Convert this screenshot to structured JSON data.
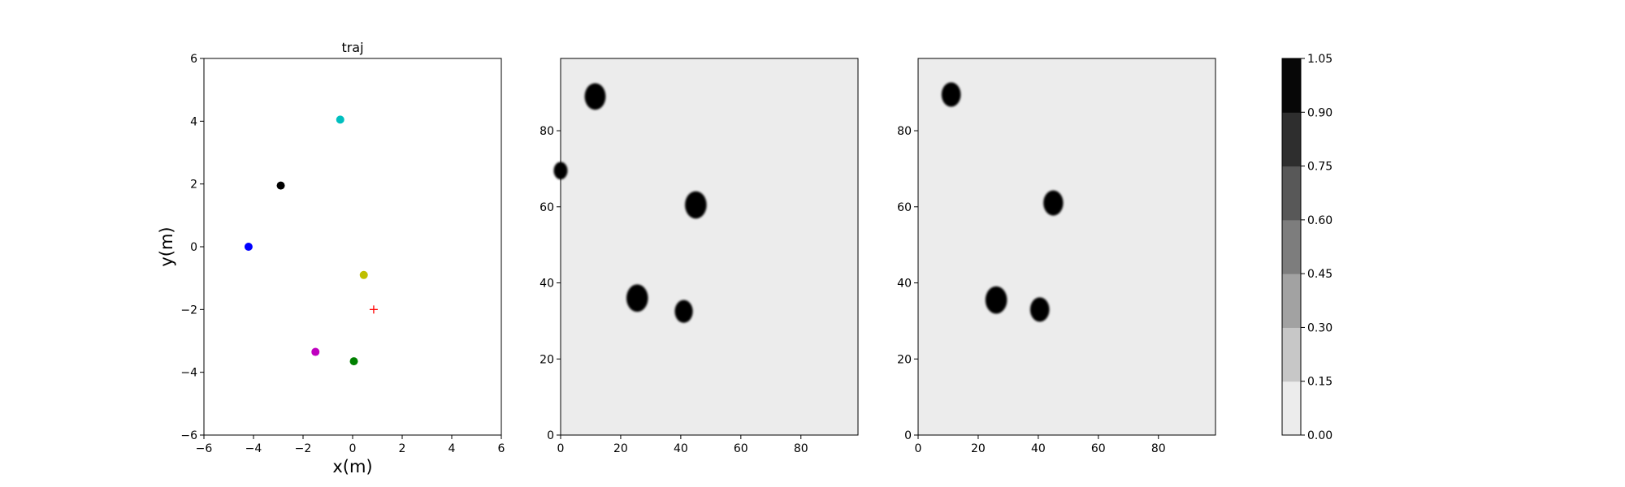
{
  "chart_data": [
    {
      "type": "scatter",
      "title": "traj",
      "xlabel": "x(m)",
      "ylabel": "y(m)",
      "xlim": [
        -6,
        6
      ],
      "ylim": [
        -6,
        6
      ],
      "xticks": [
        -6,
        -4,
        -2,
        0,
        2,
        4,
        6
      ],
      "yticks": [
        -6,
        -4,
        -2,
        0,
        2,
        4,
        6
      ],
      "grid": false,
      "points": [
        {
          "x": -0.5,
          "y": 4.05,
          "color": "#00bfbf",
          "marker": "circle"
        },
        {
          "x": -2.9,
          "y": 1.95,
          "color": "#000000",
          "marker": "circle"
        },
        {
          "x": -4.2,
          "y": 0.0,
          "color": "#0000ff",
          "marker": "circle"
        },
        {
          "x": 0.45,
          "y": -0.9,
          "color": "#bfbf00",
          "marker": "circle"
        },
        {
          "x": 0.85,
          "y": -2.0,
          "color": "#ff0000",
          "marker": "plus"
        },
        {
          "x": -1.5,
          "y": -3.35,
          "color": "#bf00bf",
          "marker": "circle"
        },
        {
          "x": 0.05,
          "y": -3.65,
          "color": "#008000",
          "marker": "circle"
        }
      ]
    },
    {
      "type": "heatmap",
      "title": "",
      "xlabel": "",
      "ylabel": "",
      "xlim": [
        0,
        99
      ],
      "ylim": [
        0,
        99
      ],
      "xticks": [
        0,
        20,
        40,
        60,
        80
      ],
      "yticks": [
        0,
        20,
        40,
        60,
        80
      ],
      "background_value": 0.05,
      "blobs": [
        {
          "x": 11.5,
          "y": 89,
          "r": 3.5,
          "value": 1.0
        },
        {
          "x": 0,
          "y": 69.5,
          "r": 2.3,
          "value": 1.0
        },
        {
          "x": 45,
          "y": 60.5,
          "r": 3.6,
          "value": 1.0
        },
        {
          "x": 25.5,
          "y": 36,
          "r": 3.6,
          "value": 1.0
        },
        {
          "x": 41,
          "y": 32.5,
          "r": 3.0,
          "value": 1.0
        }
      ]
    },
    {
      "type": "heatmap",
      "title": "",
      "xlabel": "",
      "ylabel": "",
      "xlim": [
        0,
        99
      ],
      "ylim": [
        0,
        99
      ],
      "xticks": [
        0,
        20,
        40,
        60,
        80
      ],
      "yticks": [
        0,
        20,
        40,
        60,
        80
      ],
      "background_value": 0.05,
      "blobs": [
        {
          "x": 11,
          "y": 89.5,
          "r": 3.2,
          "value": 1.0
        },
        {
          "x": 45,
          "y": 61,
          "r": 3.3,
          "value": 1.0
        },
        {
          "x": 26,
          "y": 35.5,
          "r": 3.6,
          "value": 1.0
        },
        {
          "x": 40.5,
          "y": 33,
          "r": 3.2,
          "value": 1.0
        }
      ]
    }
  ],
  "colorbar": {
    "ticks": [
      "0.00",
      "0.15",
      "0.30",
      "0.45",
      "0.60",
      "0.75",
      "0.90",
      "1.05"
    ],
    "levels": [
      "#ececec",
      "#c7c7c7",
      "#a2a2a2",
      "#7d7d7d",
      "#585858",
      "#2e2e2e",
      "#070707"
    ]
  }
}
